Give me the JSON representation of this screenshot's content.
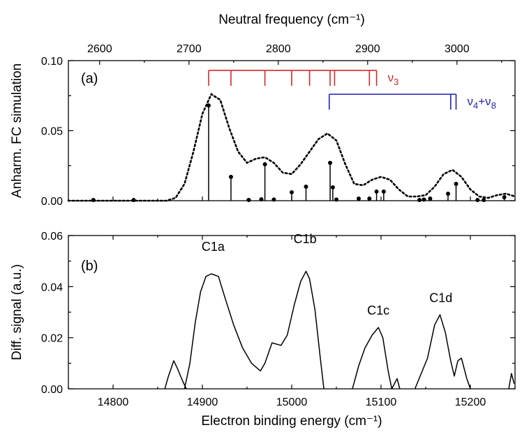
{
  "chart_data": [
    {
      "panel": "a",
      "type": "line",
      "panel_label": "(a)",
      "top_axis_title": "Neutral frequency (cm⁻¹)",
      "top_axis_ticks": [
        "2600",
        "2700",
        "2800",
        "2900",
        "3000"
      ],
      "ylabel": "Anharm. FC simulation",
      "ylim": [
        0,
        0.1
      ],
      "y_ticks": [
        "0.00",
        "0.05",
        "0.10"
      ],
      "xlim": [
        14750,
        15250
      ],
      "envelope": {
        "style": "dotted",
        "color": "#000000",
        "x": [
          14750,
          14860,
          14870,
          14880,
          14890,
          14900,
          14910,
          14920,
          14930,
          14940,
          14950,
          14960,
          14970,
          14980,
          14990,
          15000,
          15010,
          15020,
          15030,
          15040,
          15050,
          15060,
          15070,
          15080,
          15090,
          15100,
          15110,
          15120,
          15130,
          15140,
          15150,
          15160,
          15170,
          15180,
          15190,
          15200,
          15210,
          15220,
          15230,
          15240,
          15250
        ],
        "y": [
          0.0,
          0.0,
          0.002,
          0.012,
          0.035,
          0.062,
          0.076,
          0.072,
          0.052,
          0.035,
          0.027,
          0.03,
          0.031,
          0.027,
          0.02,
          0.019,
          0.026,
          0.035,
          0.044,
          0.048,
          0.043,
          0.026,
          0.012,
          0.011,
          0.015,
          0.017,
          0.015,
          0.008,
          0.003,
          0.003,
          0.004,
          0.01,
          0.019,
          0.022,
          0.017,
          0.008,
          0.003,
          0.002,
          0.004,
          0.005,
          0.003
        ]
      },
      "sticks": {
        "x": [
          14778,
          14823,
          14907,
          14932,
          14952,
          14966,
          14970,
          14980,
          15000,
          15016,
          15043,
          15046,
          15050,
          15075,
          15087,
          15095,
          15103,
          15143,
          15148,
          15155,
          15175,
          15184,
          15208,
          15215,
          15238
        ],
        "y": [
          0.0005,
          0.0005,
          0.068,
          0.017,
          0.0005,
          0.001,
          0.026,
          0.0008,
          0.006,
          0.01,
          0.027,
          0.0095,
          0.0008,
          0.0015,
          0.0015,
          0.0065,
          0.0065,
          0.0005,
          0.0008,
          0.0015,
          0.005,
          0.012,
          0.0005,
          0.0005,
          0.0025
        ]
      },
      "progressions": [
        {
          "color": "#d62728",
          "label_base": "ν",
          "label_sub": "3",
          "label_sup": "",
          "level": 0.093,
          "teeth_level": 0.082,
          "x": [
            14907,
            14932,
            14970,
            15000,
            15020,
            15043,
            15048,
            15087,
            15095
          ]
        },
        {
          "color": "#1f1fbf",
          "label_base": "ν",
          "label_sub": "4",
          "label_sup": "+ν",
          "label_sub2": "8",
          "level": 0.076,
          "teeth_level": 0.065,
          "x": [
            15042,
            15178,
            15184
          ]
        }
      ]
    },
    {
      "panel": "b",
      "type": "line",
      "panel_label": "(b)",
      "ylabel": "Diff. signal (a.u.)",
      "xlabel": "Electron binding energy (cm⁻¹)",
      "xlim": [
        14750,
        15250
      ],
      "x_ticks": [
        "14800",
        "14900",
        "15000",
        "15100",
        "15200"
      ],
      "ylim": [
        0,
        0.06
      ],
      "y_ticks": [
        "0.00",
        "0.02",
        "0.04",
        "0.06"
      ],
      "peak_labels": [
        {
          "text": "C1a",
          "x": 14912,
          "y": 0.054
        },
        {
          "text": "C1b",
          "x": 15015,
          "y": 0.057
        },
        {
          "text": "C1c",
          "x": 15097,
          "y": 0.029
        },
        {
          "text": "C1d",
          "x": 15167,
          "y": 0.034
        }
      ],
      "segments": [
        {
          "x": [
            14858,
            14862,
            14868,
            14872,
            14878,
            14882
          ],
          "y": [
            0.0,
            0.005,
            0.011,
            0.008,
            0.003,
            0.0
          ]
        },
        {
          "x": [
            14880,
            14886,
            14892,
            14898,
            14904,
            14910,
            14918,
            14925,
            14935,
            14945,
            14955,
            14965,
            14970,
            14978,
            14988,
            14995,
            15003,
            15010,
            15016,
            15020,
            15026,
            15032,
            15036
          ],
          "y": [
            0.0,
            0.01,
            0.026,
            0.038,
            0.044,
            0.045,
            0.044,
            0.036,
            0.025,
            0.016,
            0.01,
            0.007,
            0.01,
            0.018,
            0.017,
            0.021,
            0.033,
            0.042,
            0.046,
            0.043,
            0.031,
            0.012,
            0.0
          ]
        },
        {
          "x": [
            15068,
            15075,
            15082,
            15090,
            15097,
            15102,
            15108,
            15112,
            15118,
            15121
          ],
          "y": [
            0.0,
            0.009,
            0.016,
            0.021,
            0.024,
            0.02,
            0.007,
            0.0,
            0.004,
            0.0
          ]
        },
        {
          "x": [
            15138,
            15145,
            15152,
            15160,
            15166,
            15172,
            15178,
            15182,
            15186,
            15190,
            15196,
            15200
          ],
          "y": [
            0.0,
            0.006,
            0.012,
            0.025,
            0.029,
            0.022,
            0.011,
            0.005,
            0.011,
            0.012,
            0.004,
            0.0
          ]
        },
        {
          "x": [
            15243,
            15246,
            15249
          ],
          "y": [
            0.0,
            0.006,
            0.002
          ]
        }
      ]
    }
  ]
}
